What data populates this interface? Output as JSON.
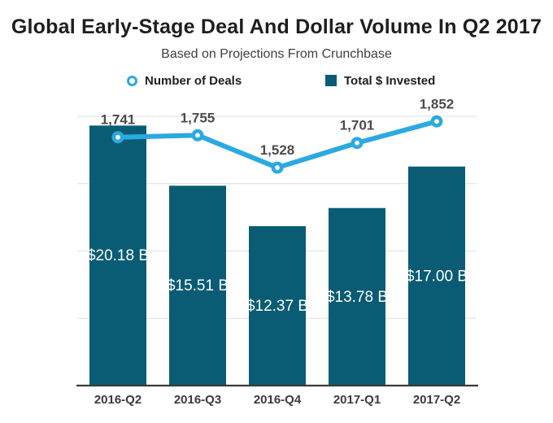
{
  "chart_data": {
    "type": "bar+line",
    "title": "Global Early-Stage Deal And Dollar Volume In Q2 2017",
    "subtitle": "Based on Projections From Crunchbase",
    "categories": [
      "2016-Q2",
      "2016-Q3",
      "2016-Q4",
      "2017-Q1",
      "2017-Q2"
    ],
    "series": [
      {
        "name": "Number of Deals",
        "type": "line",
        "color": "#2ba9e1",
        "values": [
          1741,
          1755,
          1528,
          1701,
          1852
        ],
        "labels": [
          "1,741",
          "1,755",
          "1,528",
          "1,701",
          "1,852"
        ]
      },
      {
        "name": "Total $ Invested",
        "type": "bar",
        "color": "#0a5c75",
        "values": [
          20.18,
          15.51,
          12.37,
          13.78,
          17.0
        ],
        "labels": [
          "$20.18 B",
          "$15.51 B",
          "$12.37 B",
          "$13.78 B",
          "$17.00 B"
        ]
      }
    ],
    "axes": {
      "y_axis_labels_visible": false,
      "dollar_max": 23.8,
      "deals_max": 2150,
      "gridline_count": 4,
      "grid": "horizontal-only"
    },
    "legend_position": "top",
    "colors": {
      "line_accent": "#2ba9e1",
      "bar_fill": "#0a5c75",
      "grid": "#e4e4e4",
      "axis": "#3a3a3a",
      "deal_label": "#4b4b4b",
      "tick_label": "#3b3b3b",
      "bar_value_label": "#ffffff",
      "title": "#1e1e1e",
      "subtitle": "#3f3f3f",
      "background": "#ffffff"
    }
  }
}
